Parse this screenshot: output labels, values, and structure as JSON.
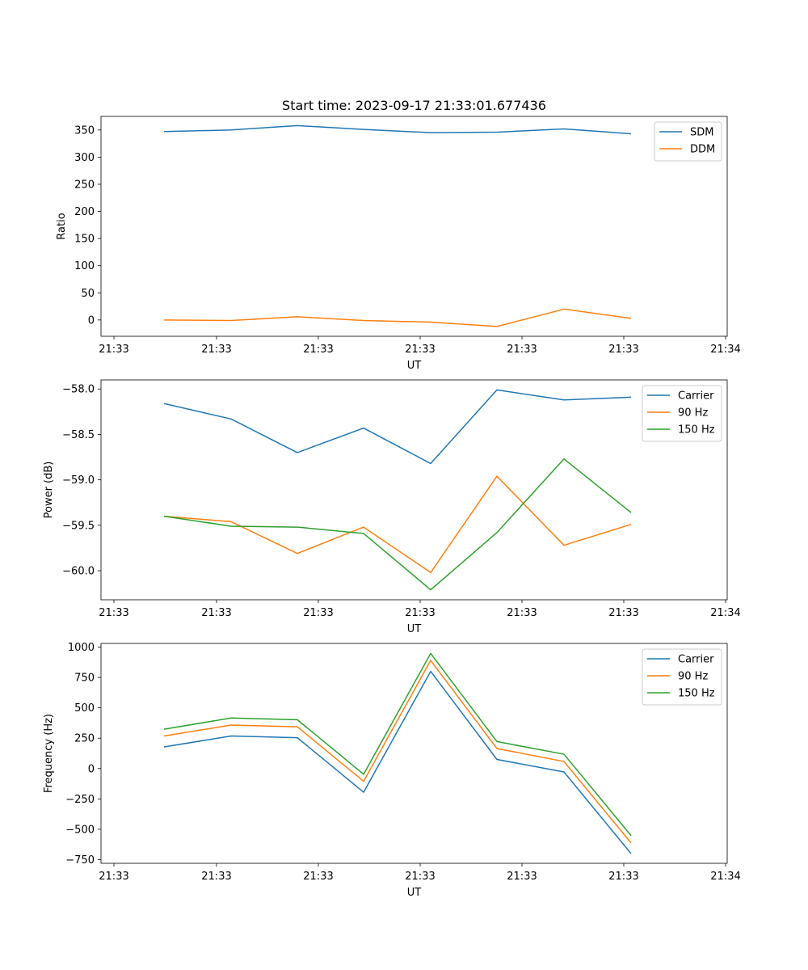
{
  "chart_data": [
    {
      "type": "line",
      "title": "Start time: 2023-09-17 21:33:01.677436",
      "xlabel": "UT",
      "ylabel": "Ratio",
      "x_tick_labels": [
        "21:33",
        "21:33",
        "21:33",
        "21:33",
        "21:33",
        "21:33",
        "21:34"
      ],
      "ylim": [
        -30,
        375
      ],
      "y_ticks": [
        0,
        50,
        100,
        150,
        200,
        250,
        300,
        350
      ],
      "y_tick_labels": [
        "0",
        "50",
        "100",
        "150",
        "200",
        "250",
        "300",
        "350"
      ],
      "legend_position": "top-right",
      "series": [
        {
          "name": "SDM",
          "color": "#1f77b4",
          "values": [
            347,
            350,
            358,
            351,
            345,
            346,
            352,
            343
          ]
        },
        {
          "name": "DDM",
          "color": "#ff7f0e",
          "values": [
            0,
            -1,
            6,
            -1,
            -4,
            -12,
            20,
            3
          ]
        }
      ]
    },
    {
      "type": "line",
      "title": "",
      "xlabel": "UT",
      "ylabel": "Power (dB)",
      "x_tick_labels": [
        "21:33",
        "21:33",
        "21:33",
        "21:33",
        "21:33",
        "21:33",
        "21:34"
      ],
      "ylim": [
        -60.32,
        -57.9
      ],
      "y_ticks": [
        -60.0,
        -59.5,
        -59.0,
        -58.5,
        -58.0
      ],
      "y_tick_labels": [
        "−60.0",
        "−59.5",
        "−59.0",
        "−58.5",
        "−58.0"
      ],
      "legend_position": "top-right",
      "series": [
        {
          "name": "Carrier",
          "color": "#1f77b4",
          "values": [
            -58.16,
            -58.33,
            -58.7,
            -58.43,
            -58.82,
            -58.01,
            -58.12,
            -58.09
          ]
        },
        {
          "name": "90 Hz",
          "color": "#ff7f0e",
          "values": [
            -59.4,
            -59.46,
            -59.81,
            -59.52,
            -60.02,
            -58.96,
            -59.72,
            -59.49
          ]
        },
        {
          "name": "150 Hz",
          "color": "#2ca02c",
          "values": [
            -59.4,
            -59.51,
            -59.52,
            -59.59,
            -60.21,
            -59.58,
            -58.77,
            -59.36
          ]
        }
      ]
    },
    {
      "type": "line",
      "title": "",
      "xlabel": "UT",
      "ylabel": "Frequency (Hz)",
      "x_tick_labels": [
        "21:33",
        "21:33",
        "21:33",
        "21:33",
        "21:33",
        "21:33",
        "21:34"
      ],
      "ylim": [
        -780,
        1030
      ],
      "y_ticks": [
        -750,
        -500,
        -250,
        0,
        250,
        500,
        750,
        1000
      ],
      "y_tick_labels": [
        "−750",
        "−500",
        "−250",
        "0",
        "250",
        "500",
        "750",
        "1000"
      ],
      "legend_position": "top-right",
      "series": [
        {
          "name": "Carrier",
          "color": "#1f77b4",
          "values": [
            178,
            268,
            254,
            -195,
            800,
            75,
            -28,
            -700
          ]
        },
        {
          "name": "90 Hz",
          "color": "#ff7f0e",
          "values": [
            268,
            358,
            344,
            -105,
            890,
            165,
            58,
            -612
          ]
        },
        {
          "name": "150 Hz",
          "color": "#2ca02c",
          "values": [
            324,
            416,
            402,
            -47,
            948,
            222,
            118,
            -552
          ]
        }
      ]
    }
  ]
}
